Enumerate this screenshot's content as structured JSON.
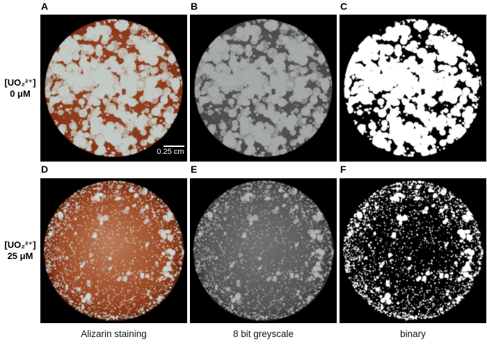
{
  "row_labels": [
    {
      "formula": "[UO₂²⁺]",
      "concentration": "0 μM"
    },
    {
      "formula": "[UO₂²⁺]",
      "concentration": "25 μM"
    }
  ],
  "captions": [
    "Alizarin staining",
    "8 bit greyscale",
    "binary"
  ],
  "scale_bar": {
    "label": "0.25 cm"
  },
  "colors": {
    "background": "#ffffff",
    "panel_background": "#000000",
    "stain_red": "#93401e",
    "stain_pale_deposit": "#c3cac5",
    "greyscale_disc": "#4e4e4e",
    "greyscale_deposit": "#a7aba8",
    "binary_foreground": "#ffffff",
    "text": "#000000"
  },
  "render": {
    "rows": [
      {
        "seed": 40213,
        "radius": 99,
        "edge_bias": 0,
        "groups": [
          {
            "count": 150,
            "min_sub": 2,
            "max_sub": 5,
            "spread": 8,
            "min_r": 2.0,
            "max_r": 6.5
          },
          {
            "count": 26,
            "min_sub": 5,
            "max_sub": 9,
            "spread": 13,
            "min_r": 3.0,
            "max_r": 8.5
          },
          {
            "count": 520,
            "min_sub": 1,
            "max_sub": 1,
            "spread": 0,
            "min_r": 0.6,
            "max_r": 2.2
          }
        ],
        "rim": {
          "count": 90,
          "min_r": 0.6,
          "max_r": 2.0
        }
      },
      {
        "seed": 9112,
        "radius": 101,
        "edge_bias": 0.35,
        "groups": [
          {
            "count": 70,
            "min_sub": 1,
            "max_sub": 3,
            "spread": 4,
            "min_r": 1.4,
            "max_r": 3.2
          },
          {
            "count": 12,
            "min_sub": 2,
            "max_sub": 4,
            "spread": 5,
            "min_r": 2.5,
            "max_r": 4.5
          },
          {
            "count": 2600,
            "min_sub": 1,
            "max_sub": 1,
            "spread": 0,
            "min_r": 0.3,
            "max_r": 1.2
          }
        ],
        "rim": {
          "count": 480,
          "min_r": 0.4,
          "max_r": 1.5
        }
      }
    ],
    "panels": [
      {
        "letter": "A",
        "row": 0,
        "blob": "#c3cac5",
        "alpha": [
          0.65,
          1
        ],
        "disc": [
          [
            0,
            "#8c3a1c"
          ],
          [
            0.55,
            "#93401e"
          ],
          [
            0.85,
            "#8a3818"
          ],
          [
            1,
            "#7e3012"
          ]
        ]
      },
      {
        "letter": "B",
        "row": 0,
        "blob": "#a7aba8",
        "alpha": [
          0.6,
          1
        ],
        "disc": [
          [
            0,
            "#4e4e4e"
          ],
          [
            0.7,
            "#525252"
          ],
          [
            1,
            "#474747"
          ]
        ]
      },
      {
        "letter": "C",
        "row": 0,
        "blob": "#ffffff",
        "alpha": [
          1,
          1
        ],
        "disc": [
          [
            0,
            "#000000"
          ],
          [
            1,
            "#000000"
          ]
        ]
      },
      {
        "letter": "D",
        "row": 1,
        "blob": "#ccd6d3",
        "alpha": [
          0.55,
          1
        ],
        "disc": [
          [
            0,
            "#b87a58"
          ],
          [
            0.4,
            "#ad5f3a"
          ],
          [
            0.75,
            "#9c4723"
          ],
          [
            0.92,
            "#833113"
          ],
          [
            1,
            "#541c05"
          ]
        ]
      },
      {
        "letter": "E",
        "row": 1,
        "blob": "#b4b8b6",
        "alpha": [
          0.5,
          1
        ],
        "disc": [
          [
            0,
            "#6f6f6f"
          ],
          [
            0.5,
            "#616161"
          ],
          [
            0.85,
            "#525252"
          ],
          [
            1,
            "#303030"
          ]
        ]
      },
      {
        "letter": "F",
        "row": 1,
        "blob": "#ffffff",
        "alpha": [
          1,
          1
        ],
        "disc": [
          [
            0,
            "#000000"
          ],
          [
            1,
            "#000000"
          ]
        ]
      }
    ]
  }
}
